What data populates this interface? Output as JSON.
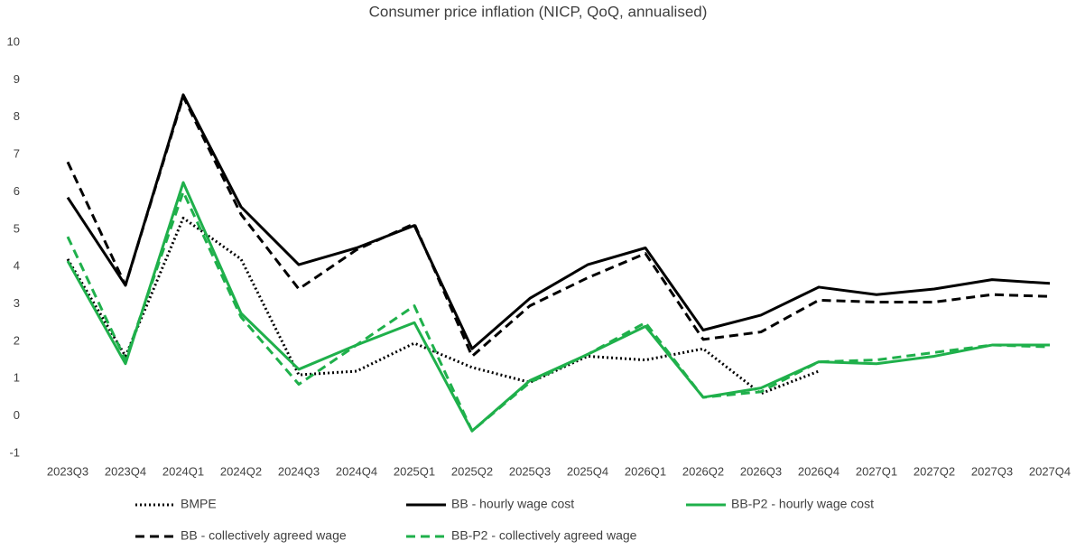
{
  "chart_data": {
    "type": "line",
    "title": "Consumer price inflation (NICP, QoQ, annualised)",
    "categories": [
      "2023Q3",
      "2023Q4",
      "2024Q1",
      "2024Q2",
      "2024Q3",
      "2024Q4",
      "2025Q1",
      "2025Q2",
      "2025Q3",
      "2025Q4",
      "2026Q1",
      "2026Q2",
      "2026Q3",
      "2026Q4",
      "2027Q1",
      "2027Q2",
      "2027Q3",
      "2027Q4"
    ],
    "ylim": [
      -1,
      10
    ],
    "yticks": [
      -1,
      0,
      1,
      2,
      3,
      4,
      5,
      6,
      7,
      8,
      9,
      10
    ],
    "grid": false,
    "series": [
      {
        "name": "BMPE",
        "color": "#000000",
        "dash": "dotted",
        "values": [
          4.2,
          1.6,
          5.3,
          4.2,
          1.1,
          1.2,
          1.95,
          1.3,
          0.9,
          1.6,
          1.5,
          1.8,
          0.6,
          1.2,
          null,
          null,
          null,
          null
        ]
      },
      {
        "name": "BB - hourly wage cost",
        "color": "#000000",
        "dash": "solid",
        "values": [
          5.85,
          3.5,
          8.6,
          5.6,
          4.05,
          4.5,
          5.1,
          1.8,
          3.15,
          4.05,
          4.5,
          2.3,
          2.7,
          3.45,
          3.25,
          3.4,
          3.65,
          3.55
        ]
      },
      {
        "name": "BB-P2 - hourly wage cost",
        "color": "#1fb04b",
        "dash": "solid",
        "values": [
          4.15,
          1.4,
          6.25,
          2.75,
          1.25,
          1.9,
          2.5,
          -0.4,
          0.95,
          1.65,
          2.4,
          0.5,
          0.75,
          1.45,
          1.4,
          1.6,
          1.9,
          1.9
        ]
      },
      {
        "name": "BB - collectively agreed wage",
        "color": "#000000",
        "dash": "dashed",
        "values": [
          6.8,
          3.5,
          8.55,
          5.4,
          3.4,
          4.45,
          5.15,
          1.6,
          2.95,
          3.7,
          4.35,
          2.05,
          2.25,
          3.1,
          3.05,
          3.05,
          3.25,
          3.2
        ]
      },
      {
        "name": "BB-P2 - collectively agreed wage",
        "color": "#1fb04b",
        "dash": "dashed",
        "values": [
          4.8,
          1.5,
          6.0,
          2.65,
          0.85,
          1.9,
          2.95,
          -0.4,
          0.9,
          1.65,
          2.5,
          0.5,
          0.65,
          1.45,
          1.5,
          1.7,
          1.9,
          1.85
        ]
      }
    ]
  }
}
